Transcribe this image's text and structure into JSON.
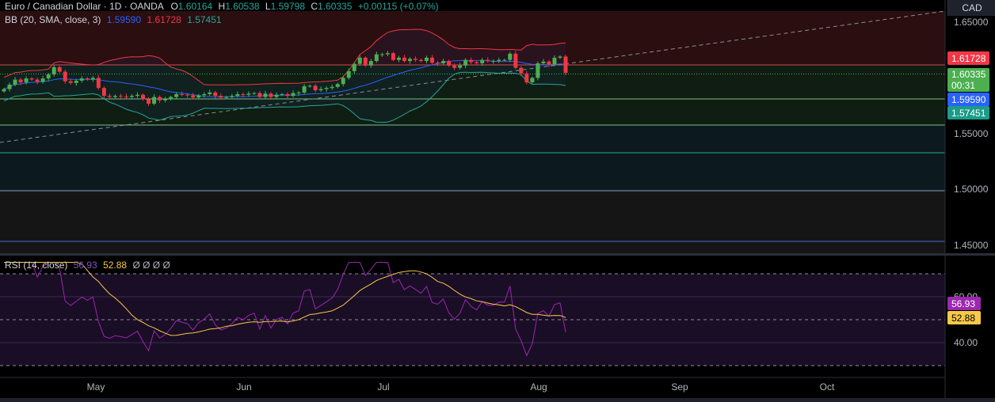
{
  "header": {
    "symbol": "Euro / Canadian Dollar · 1D · OANDA",
    "open_label": "O",
    "open": "1.60164",
    "high_label": "H",
    "high": "1.60538",
    "low_label": "L",
    "low": "1.59798",
    "close_label": "C",
    "close": "1.60335",
    "change": "+0.00115 (+0.07%)",
    "currency": "CAD"
  },
  "bb_legend": {
    "name": "BB (20, SMA, close, 3)",
    "basis": "1.59590",
    "upper": "1.61728",
    "lower": "1.57451"
  },
  "rsi_legend": {
    "name": "RSI (14, close)",
    "rsi": "56.93",
    "ma": "52.88",
    "empties": "Ø Ø Ø Ø"
  },
  "price_axis": {
    "ticks": [
      "1.65000",
      "1.55000",
      "1.50000",
      "1.45000"
    ],
    "badges": {
      "upper": "1.61728",
      "last": "1.60335",
      "countdown": "00:31",
      "basis": "1.59590",
      "lower": "1.57451"
    }
  },
  "rsi_axis": {
    "ticks": [
      "60.00",
      "40.00"
    ],
    "badges": {
      "rsi": "56.93",
      "ma": "52.88"
    }
  },
  "time_axis": {
    "labels": [
      "May",
      "Jun",
      "Jul",
      "Aug",
      "Sep",
      "Oct"
    ]
  },
  "colors": {
    "up": "#4caf50",
    "down": "#f23645",
    "bb_basis": "#2962ff",
    "bb_upper": "#f23645",
    "bb_lower": "#26a69a",
    "rsi": "#9c27b0",
    "rsi_ma": "#f7c948"
  },
  "chart_data": [
    {
      "type": "candlestick",
      "title": "Euro / Canadian Dollar · 1D · OANDA",
      "ylim": [
        1.445,
        1.664
      ],
      "x_labels": [
        "May",
        "Jun",
        "Jul",
        "Aug",
        "Sep",
        "Oct"
      ],
      "closes": [
        1.589,
        1.593,
        1.5975,
        1.595,
        1.5985,
        1.5975,
        1.5955,
        1.5985,
        1.602,
        1.6085,
        1.6045,
        1.596,
        1.5945,
        1.5965,
        1.5985,
        1.5975,
        1.599,
        1.59,
        1.583,
        1.582,
        1.583,
        1.5825,
        1.582,
        1.583,
        1.584,
        1.58,
        1.576,
        1.582,
        1.579,
        1.58,
        1.582,
        1.5845,
        1.584,
        1.5835,
        1.5815,
        1.5835,
        1.5845,
        1.586,
        1.583,
        1.5815,
        1.582,
        1.583,
        1.5845,
        1.584,
        1.585,
        1.5855,
        1.582,
        1.585,
        1.582,
        1.584,
        1.5845,
        1.583,
        1.5855,
        1.586,
        1.5915,
        1.592,
        1.588,
        1.589,
        1.59,
        1.591,
        1.5935,
        1.599,
        1.605,
        1.6115,
        1.617,
        1.61,
        1.614,
        1.62,
        1.62,
        1.621,
        1.615,
        1.617,
        1.614,
        1.616,
        1.615,
        1.614,
        1.617,
        1.6125,
        1.612,
        1.614,
        1.61,
        1.608,
        1.61,
        1.615,
        1.613,
        1.612,
        1.615,
        1.614,
        1.614,
        1.615,
        1.615,
        1.6205,
        1.608,
        1.603,
        1.595,
        1.599,
        1.612,
        1.6135,
        1.611,
        1.617,
        1.618,
        1.6034
      ],
      "last_close": 1.60335,
      "overlay_lines": [
        "BB basis",
        "BB upper",
        "BB lower"
      ],
      "levels": [
        1.6172,
        1.6137,
        1.5959,
        1.5745,
        1.5675,
        1.5555,
        1.5035,
        1.456
      ]
    },
    {
      "type": "line",
      "title": "RSI (14, close)",
      "ylim": [
        25,
        75
      ],
      "series": [
        {
          "name": "RSI",
          "last": 56.93
        },
        {
          "name": "RSI-based MA",
          "last": 52.88
        }
      ],
      "levels": [
        70,
        50,
        30
      ]
    }
  ]
}
